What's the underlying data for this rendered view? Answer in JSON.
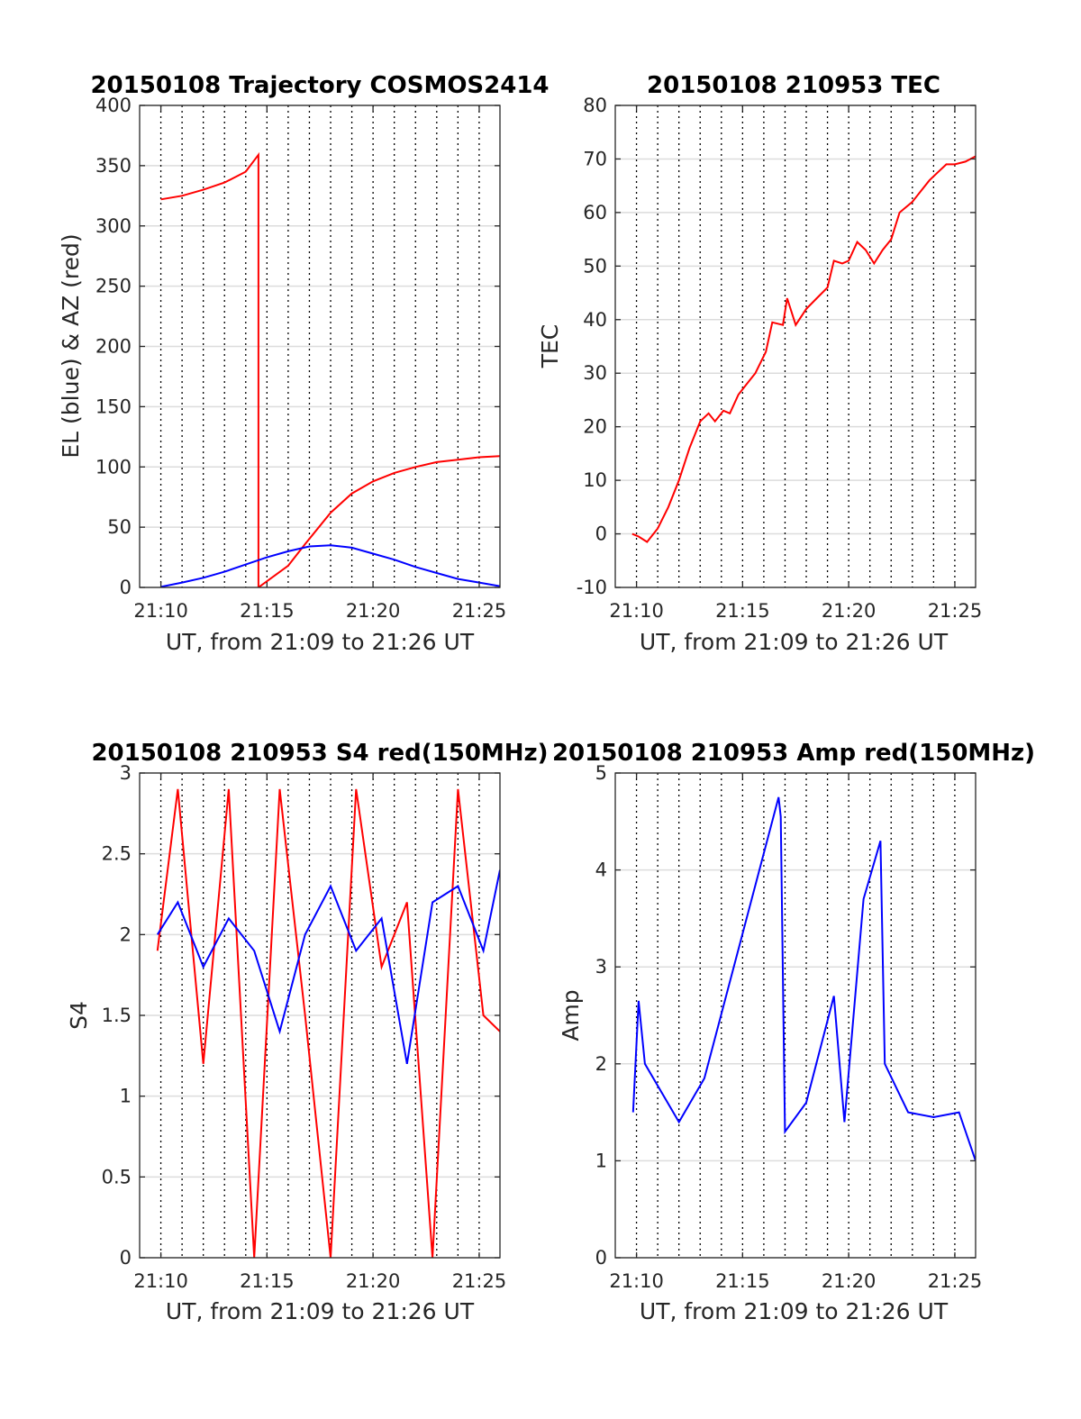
{
  "chart_data": [
    {
      "type": "line",
      "title": "20150108 Trajectory COSMOS2414",
      "xlabel": "UT, from 21:09 to 21:26 UT",
      "ylabel": "EL (blue) & AZ (red)",
      "xlim": [
        21.15,
        21.433
      ],
      "ylim": [
        0,
        400
      ],
      "xticks": [
        21.1667,
        21.25,
        21.3333,
        21.4167
      ],
      "xticklabels": [
        "21:10",
        "21:15",
        "21:20",
        "21:25"
      ],
      "yticks": [
        0,
        50,
        100,
        150,
        200,
        250,
        300,
        350,
        400
      ],
      "yticklabels": [
        "0",
        "50",
        "100",
        "150",
        "200",
        "250",
        "300",
        "350",
        "400"
      ],
      "minor_vgrid_every_min": 1,
      "grid": true,
      "series": [
        {
          "color": "#ff0000",
          "x": [
            21.1667,
            21.1833,
            21.2,
            21.2167,
            21.2333,
            21.2433,
            21.2667,
            21.28,
            21.3,
            21.3167,
            21.3333,
            21.35,
            21.3667,
            21.3833,
            21.4,
            21.4167,
            21.433
          ],
          "y": [
            322,
            325,
            330,
            336,
            345,
            359,
            18,
            36,
            62,
            78,
            88,
            95,
            100,
            104,
            106,
            108,
            109
          ],
          "break_after_index": 5
        },
        {
          "color": "#0000ff",
          "x": [
            21.1667,
            21.1833,
            21.2,
            21.2167,
            21.2333,
            21.25,
            21.2667,
            21.2833,
            21.3,
            21.3167,
            21.3333,
            21.35,
            21.3667,
            21.3833,
            21.4,
            21.4167,
            21.433
          ],
          "y": [
            0.5,
            4,
            8,
            13,
            19,
            25,
            30,
            34,
            35,
            33,
            28,
            23,
            17,
            12,
            7,
            4,
            1
          ]
        }
      ]
    },
    {
      "type": "line",
      "title": "20150108 210953 TEC",
      "xlabel": "UT, from 21:09 to 21:26 UT",
      "ylabel": "TEC",
      "xlim": [
        21.15,
        21.433
      ],
      "ylim": [
        -10,
        80
      ],
      "xticks": [
        21.1667,
        21.25,
        21.3333,
        21.4167
      ],
      "xticklabels": [
        "21:10",
        "21:15",
        "21:20",
        "21:25"
      ],
      "yticks": [
        -10,
        0,
        10,
        20,
        30,
        40,
        50,
        60,
        70,
        80
      ],
      "yticklabels": [
        "-10",
        "0",
        "10",
        "20",
        "30",
        "40",
        "50",
        "60",
        "70",
        "80"
      ],
      "minor_vgrid_every_min": 1,
      "grid": true,
      "series": [
        {
          "color": "#ff0000",
          "x": [
            21.1633,
            21.1683,
            21.175,
            21.1833,
            21.1917,
            21.2,
            21.2083,
            21.2167,
            21.2233,
            21.2283,
            21.235,
            21.24,
            21.2467,
            21.2533,
            21.26,
            21.2683,
            21.2733,
            21.2817,
            21.285,
            21.2917,
            21.3,
            21.3083,
            21.3167,
            21.3217,
            21.3283,
            21.3333,
            21.34,
            21.3467,
            21.3533,
            21.36,
            21.3667,
            21.3733,
            21.3833,
            21.39,
            21.3967,
            21.4033,
            21.41,
            21.4167,
            21.425,
            21.433
          ],
          "y": [
            0,
            -0.5,
            -1.5,
            1,
            5,
            10,
            16,
            21,
            22.5,
            21,
            23,
            22.5,
            26,
            28,
            30,
            34,
            39.5,
            39,
            44,
            39,
            42,
            44,
            46,
            51,
            50.5,
            51,
            54.5,
            53,
            50.5,
            53,
            55,
            60,
            62,
            64,
            66,
            67.5,
            69,
            69,
            69.5,
            70.5
          ]
        }
      ]
    },
    {
      "type": "line",
      "title": "20150108 210953 S4 red(150MHz)",
      "xlabel": "UT, from 21:09 to 21:26 UT",
      "ylabel": "S4",
      "xlim": [
        21.15,
        21.433
      ],
      "ylim": [
        0,
        3
      ],
      "xticks": [
        21.1667,
        21.25,
        21.3333,
        21.4167
      ],
      "xticklabels": [
        "21:10",
        "21:15",
        "21:20",
        "21:25"
      ],
      "yticks": [
        0,
        0.5,
        1,
        1.5,
        2,
        2.5,
        3
      ],
      "yticklabels": [
        "0",
        "0.5",
        "1",
        "1.5",
        "2",
        "2.5",
        "3"
      ],
      "minor_vgrid_every_min": 1,
      "grid": true,
      "series": [
        {
          "color": "#ff0000",
          "x": [
            21.164,
            21.18,
            21.2,
            21.22,
            21.24,
            21.26,
            21.28,
            21.3,
            21.32,
            21.34,
            21.36,
            21.38,
            21.4,
            21.42,
            21.433
          ],
          "y": [
            1.9,
            2.9,
            1.2,
            2.9,
            0,
            2.9,
            1.5,
            0,
            2.9,
            1.8,
            2.2,
            0,
            2.9,
            1.5,
            1.4
          ]
        },
        {
          "color": "#0000ff",
          "x": [
            21.164,
            21.18,
            21.2,
            21.22,
            21.24,
            21.26,
            21.28,
            21.3,
            21.32,
            21.34,
            21.36,
            21.38,
            21.4,
            21.42,
            21.433
          ],
          "y": [
            2.0,
            2.2,
            1.8,
            2.1,
            1.9,
            1.4,
            2.0,
            2.3,
            1.9,
            2.1,
            1.2,
            2.2,
            2.3,
            1.9,
            2.4
          ]
        }
      ]
    },
    {
      "type": "line",
      "title": "20150108 210953 Amp red(150MHz)",
      "xlabel": "UT, from 21:09 to 21:26 UT",
      "ylabel": "Amp",
      "xlim": [
        21.15,
        21.433
      ],
      "ylim": [
        0,
        5
      ],
      "xticks": [
        21.1667,
        21.25,
        21.3333,
        21.4167
      ],
      "xticklabels": [
        "21:10",
        "21:15",
        "21:20",
        "21:25"
      ],
      "yticks": [
        0,
        1,
        2,
        3,
        4,
        5
      ],
      "yticklabels": [
        "0",
        "1",
        "2",
        "3",
        "4",
        "5"
      ],
      "minor_vgrid_every_min": 1,
      "grid": true,
      "series": [
        {
          "color": "#0000ff",
          "x": [
            21.164,
            21.1683,
            21.1733,
            21.2,
            21.22,
            21.2783,
            21.28,
            21.2833,
            21.3,
            21.3217,
            21.33,
            21.345,
            21.3583,
            21.3617,
            21.38,
            21.4,
            21.42,
            21.433
          ],
          "y": [
            1.5,
            2.65,
            2.0,
            1.4,
            1.85,
            4.75,
            4.55,
            1.3,
            1.6,
            2.7,
            1.4,
            3.7,
            4.3,
            2.0,
            1.5,
            1.45,
            1.5,
            1.0
          ]
        }
      ]
    }
  ]
}
